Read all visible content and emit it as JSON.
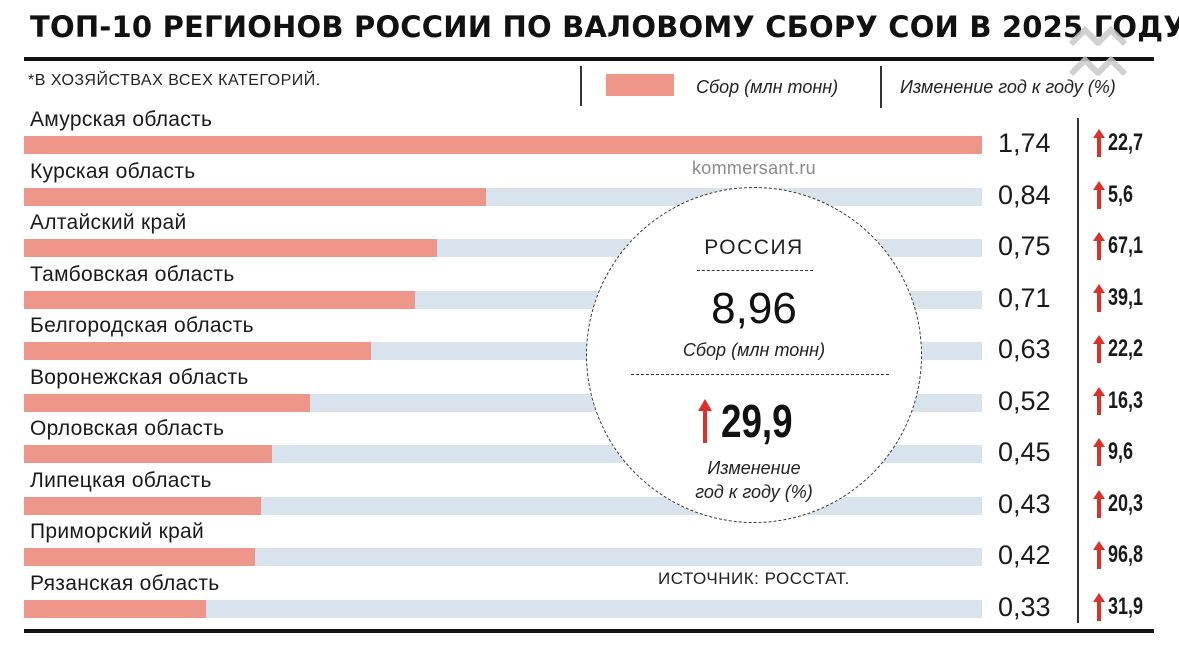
{
  "header": {
    "title": "ТОП-10 РЕГИОНОВ РОССИИ ПО ВАЛОВОМУ СБОРУ СОИ В 2025 ГОДУ*",
    "footnote": "*В ХОЗЯЙСТВАХ ВСЕХ КАТЕГОРИЙ.",
    "legend_label": "Сбор (млн тонн)",
    "change_header": "Изменение год к году (%)"
  },
  "colors": {
    "bar": "#ee968a",
    "track": "#d8e3ee",
    "arrow": "#d9322b"
  },
  "credit": "kommersant.ru",
  "source": "ИСТОЧНИК: РОССТАТ.",
  "summary": {
    "country": "РОССИЯ",
    "total": "8,96",
    "total_label": "Сбор (млн тонн)",
    "change": "29,9",
    "change_label_line1": "Изменение",
    "change_label_line2": "год к году (%)",
    "arrow_icon": "arrow-up-icon"
  },
  "chart_data": {
    "type": "bar",
    "orientation": "horizontal",
    "title": "ТОП-10 РЕГИОНОВ РОССИИ ПО ВАЛОВОМУ СБОРУ СОИ В 2025 ГОДУ*",
    "categories": [
      "Амурская область",
      "Курская область",
      "Алтайский край",
      "Тамбовская область",
      "Белгородская область",
      "Воронежская область",
      "Орловская область",
      "Липецкая область",
      "Приморский край",
      "Рязанская область"
    ],
    "series": [
      {
        "name": "Сбор (млн тонн)",
        "values": [
          1.74,
          0.84,
          0.75,
          0.71,
          0.63,
          0.52,
          0.45,
          0.43,
          0.42,
          0.33
        ]
      },
      {
        "name": "Изменение год к году (%)",
        "values": [
          22.7,
          5.6,
          67.1,
          39.1,
          22.2,
          16.3,
          9.6,
          20.3,
          96.8,
          31.9
        ]
      }
    ],
    "value_labels": [
      "1,74",
      "0,84",
      "0,75",
      "0,71",
      "0,63",
      "0,52",
      "0,45",
      "0,43",
      "0,42",
      "0,33"
    ],
    "change_labels": [
      "22,7",
      "5,6",
      "67,1",
      "39,1",
      "22,2",
      "16,3",
      "9,6",
      "20,3",
      "96,8",
      "31,9"
    ],
    "xlim": [
      0,
      1.74
    ],
    "grid": false,
    "legend": "top"
  }
}
